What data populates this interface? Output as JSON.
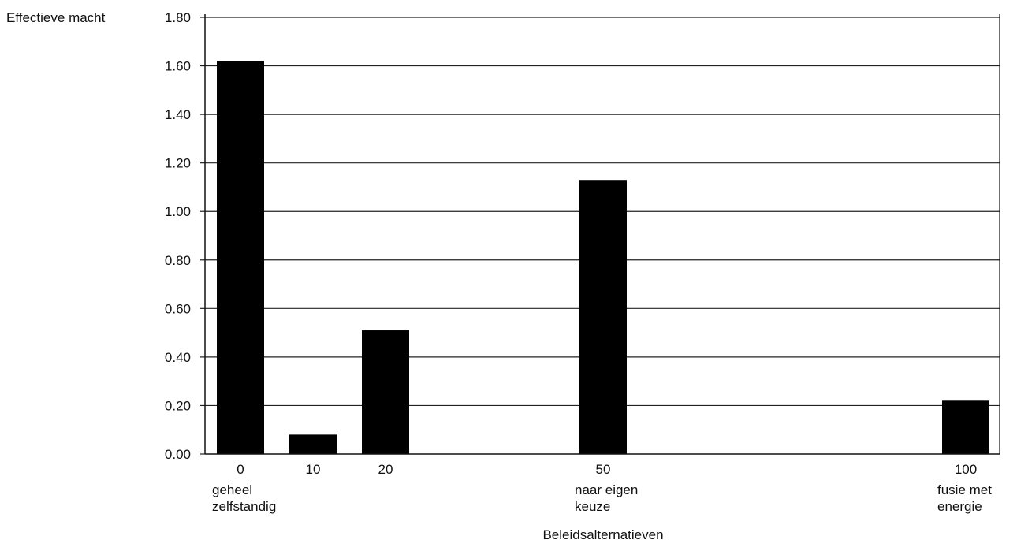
{
  "chart_data": {
    "type": "bar",
    "ylabel": "Effectieve macht",
    "xlabel": "Beleidsalternatieven",
    "ylim": [
      0,
      1.8
    ],
    "yticks": [
      "0.00",
      "0.20",
      "0.40",
      "0.60",
      "0.80",
      "1.00",
      "1.20",
      "1.40",
      "1.60",
      "1.80"
    ],
    "x": [
      0,
      10,
      20,
      50,
      100
    ],
    "values": [
      1.62,
      0.08,
      0.51,
      1.13,
      0.22
    ],
    "x_tick_labels": [
      "0",
      "10",
      "20",
      "50",
      "100"
    ],
    "x_tick_sublabels": [
      [
        "geheel",
        "zelfstandig"
      ],
      [],
      [],
      [
        "naar eigen",
        "keuze"
      ],
      [
        "fusie met",
        "energie"
      ]
    ],
    "grid": true,
    "bar_color": "#000000"
  }
}
